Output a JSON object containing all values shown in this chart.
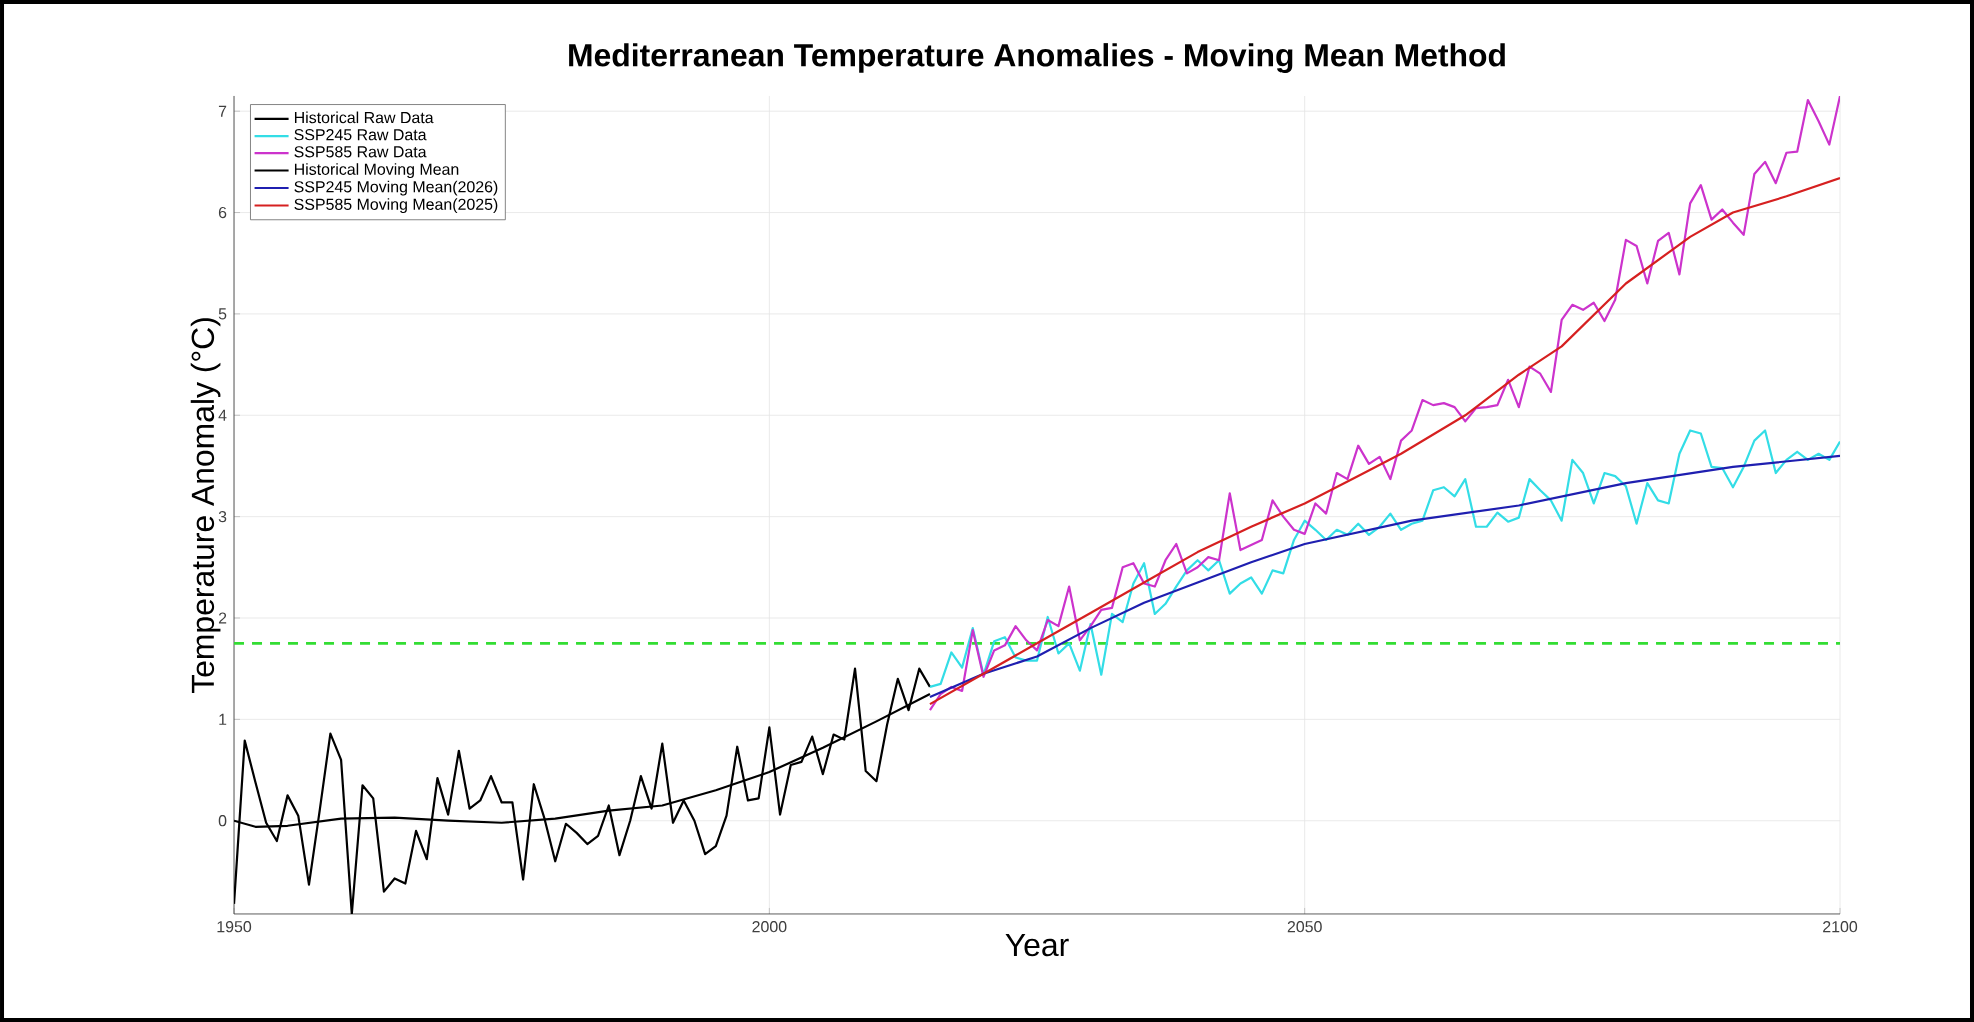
{
  "chart_data": {
    "type": "line",
    "title": "Mediterranean Temperature Anomalies - Moving Mean Method",
    "xlabel": "Year",
    "ylabel": "Temperature Anomaly (°C)",
    "xlim": [
      1950,
      2100
    ],
    "xticks": [
      1950,
      2000,
      2050,
      2100
    ],
    "ylim": [
      -0.92,
      7.15
    ],
    "yticks": [
      0,
      1,
      2,
      3,
      4,
      5,
      6,
      7
    ],
    "grid": true,
    "legend": "top left",
    "ref_lines": [
      {
        "axis": "y",
        "value": 1.75,
        "color": "#33dd33",
        "line_style": "dashed"
      }
    ],
    "series": [
      {
        "name": "Historical Raw Data",
        "color": "#000000",
        "x": [
          1950,
          1951,
          1952,
          1953,
          1954,
          1955,
          1956,
          1957,
          1958,
          1959,
          1960,
          1961,
          1962,
          1963,
          1964,
          1965,
          1966,
          1967,
          1968,
          1969,
          1970,
          1971,
          1972,
          1973,
          1974,
          1975,
          1976,
          1977,
          1978,
          1979,
          1980,
          1981,
          1982,
          1983,
          1984,
          1985,
          1986,
          1987,
          1988,
          1989,
          1990,
          1991,
          1992,
          1993,
          1994,
          1995,
          1996,
          1997,
          1998,
          1999,
          2000,
          2001,
          2002,
          2003,
          2004,
          2005,
          2006,
          2007,
          2008,
          2009,
          2010,
          2011,
          2012,
          2013,
          2014,
          2015
        ],
        "values": [
          -0.82,
          0.79,
          0.38,
          -0.02,
          -0.2,
          0.25,
          0.05,
          -0.63,
          0.1,
          0.86,
          0.6,
          -0.92,
          0.35,
          0.22,
          -0.7,
          -0.57,
          -0.62,
          -0.1,
          -0.38,
          0.42,
          0.06,
          0.69,
          0.12,
          0.2,
          0.44,
          0.18,
          0.18,
          -0.58,
          0.36,
          0.02,
          -0.4,
          -0.03,
          -0.12,
          -0.23,
          -0.15,
          0.15,
          -0.34,
          0.0,
          0.44,
          0.12,
          0.76,
          -0.02,
          0.2,
          0.0,
          -0.33,
          -0.25,
          0.05,
          0.73,
          0.2,
          0.22,
          0.92,
          0.06,
          0.55,
          0.58,
          0.83,
          0.46,
          0.85,
          0.8,
          1.5,
          0.49,
          0.39,
          0.95,
          1.4,
          1.09,
          1.5,
          1.32
        ]
      },
      {
        "name": "SSP245 Raw Data",
        "color": "#33dde6",
        "x": [
          2015,
          2016,
          2017,
          2018,
          2019,
          2020,
          2021,
          2022,
          2023,
          2024,
          2025,
          2026,
          2027,
          2028,
          2029,
          2030,
          2031,
          2032,
          2033,
          2034,
          2035,
          2036,
          2037,
          2038,
          2039,
          2040,
          2041,
          2042,
          2043,
          2044,
          2045,
          2046,
          2047,
          2048,
          2049,
          2050,
          2051,
          2052,
          2053,
          2054,
          2055,
          2056,
          2057,
          2058,
          2059,
          2060,
          2061,
          2062,
          2063,
          2064,
          2065,
          2066,
          2067,
          2068,
          2069,
          2070,
          2071,
          2072,
          2073,
          2074,
          2075,
          2076,
          2077,
          2078,
          2079,
          2080,
          2081,
          2082,
          2083,
          2084,
          2085,
          2086,
          2087,
          2088,
          2089,
          2090,
          2091,
          2092,
          2093,
          2094,
          2095,
          2096,
          2097,
          2098,
          2099,
          2100
        ],
        "values": [
          1.32,
          1.35,
          1.66,
          1.51,
          1.9,
          1.44,
          1.77,
          1.81,
          1.61,
          1.58,
          1.58,
          2.01,
          1.65,
          1.75,
          1.48,
          1.94,
          1.44,
          2.04,
          1.96,
          2.34,
          2.54,
          2.04,
          2.14,
          2.31,
          2.47,
          2.57,
          2.47,
          2.57,
          2.24,
          2.34,
          2.4,
          2.24,
          2.47,
          2.44,
          2.77,
          2.96,
          2.87,
          2.77,
          2.87,
          2.82,
          2.93,
          2.82,
          2.9,
          3.03,
          2.87,
          2.93,
          2.96,
          3.26,
          3.29,
          3.2,
          3.37,
          2.9,
          2.9,
          3.04,
          2.95,
          2.99,
          3.37,
          3.26,
          3.16,
          2.96,
          3.56,
          3.43,
          3.13,
          3.43,
          3.4,
          3.3,
          2.93,
          3.33,
          3.16,
          3.13,
          3.62,
          3.85,
          3.82,
          3.49,
          3.48,
          3.29,
          3.49,
          3.75,
          3.85,
          3.43,
          3.56,
          3.64,
          3.56,
          3.62,
          3.56,
          3.74
        ]
      },
      {
        "name": "SSP585 Raw Data",
        "color": "#cc33cc",
        "x": [
          2015,
          2016,
          2017,
          2018,
          2019,
          2020,
          2021,
          2022,
          2023,
          2024,
          2025,
          2026,
          2027,
          2028,
          2029,
          2030,
          2031,
          2032,
          2033,
          2034,
          2035,
          2036,
          2037,
          2038,
          2039,
          2040,
          2041,
          2042,
          2043,
          2044,
          2045,
          2046,
          2047,
          2048,
          2049,
          2050,
          2051,
          2052,
          2053,
          2054,
          2055,
          2056,
          2057,
          2058,
          2059,
          2060,
          2061,
          2062,
          2063,
          2064,
          2065,
          2066,
          2067,
          2068,
          2069,
          2070,
          2071,
          2072,
          2073,
          2074,
          2075,
          2076,
          2077,
          2078,
          2079,
          2080,
          2081,
          2082,
          2083,
          2084,
          2085,
          2086,
          2087,
          2088,
          2089,
          2090,
          2091,
          2092,
          2093,
          2094,
          2095,
          2096,
          2097,
          2098,
          2099,
          2100
        ],
        "values": [
          1.09,
          1.25,
          1.32,
          1.28,
          1.88,
          1.42,
          1.68,
          1.73,
          1.92,
          1.78,
          1.68,
          1.98,
          1.92,
          2.31,
          1.78,
          1.92,
          2.08,
          2.1,
          2.5,
          2.54,
          2.34,
          2.31,
          2.57,
          2.73,
          2.44,
          2.5,
          2.6,
          2.57,
          3.23,
          2.67,
          2.72,
          2.77,
          3.16,
          3.0,
          2.87,
          2.83,
          3.13,
          3.03,
          3.43,
          3.37,
          3.7,
          3.52,
          3.59,
          3.37,
          3.75,
          3.85,
          4.15,
          4.1,
          4.12,
          4.08,
          3.94,
          4.07,
          4.08,
          4.1,
          4.35,
          4.08,
          4.48,
          4.41,
          4.23,
          4.94,
          5.09,
          5.04,
          5.11,
          4.93,
          5.14,
          5.73,
          5.67,
          5.3,
          5.72,
          5.8,
          5.39,
          6.09,
          6.27,
          5.93,
          6.03,
          5.9,
          5.78,
          6.38,
          6.5,
          6.29,
          6.59,
          6.6,
          7.11,
          6.9,
          6.67,
          7.15
        ]
      },
      {
        "name": "Historical Moving Mean",
        "color": "#000000",
        "x": [
          1950,
          1952,
          1955,
          1960,
          1965,
          1970,
          1975,
          1980,
          1985,
          1990,
          1995,
          2000,
          2005,
          2010,
          2015
        ],
        "values": [
          0.0,
          -0.06,
          -0.05,
          0.02,
          0.03,
          0.0,
          -0.02,
          0.02,
          0.1,
          0.15,
          0.3,
          0.48,
          0.72,
          0.98,
          1.25
        ]
      },
      {
        "name": "SSP245  Moving Mean(2026)",
        "color": "#1f1fb0",
        "x": [
          2015,
          2020,
          2025,
          2030,
          2035,
          2040,
          2045,
          2050,
          2060,
          2070,
          2080,
          2090,
          2100
        ],
        "values": [
          1.22,
          1.45,
          1.62,
          1.9,
          2.15,
          2.35,
          2.55,
          2.73,
          2.96,
          3.11,
          3.33,
          3.49,
          3.6
        ]
      },
      {
        "name": "SSP585  Moving Mean(2025)",
        "color": "#d62020",
        "x": [
          2015,
          2020,
          2025,
          2030,
          2035,
          2040,
          2045,
          2050,
          2055,
          2059,
          2065,
          2070,
          2074,
          2080,
          2086,
          2090,
          2095,
          2100
        ],
        "values": [
          1.15,
          1.45,
          1.75,
          2.05,
          2.35,
          2.65,
          2.9,
          3.13,
          3.4,
          3.62,
          4.0,
          4.4,
          4.68,
          5.3,
          5.76,
          6.0,
          6.16,
          6.34
        ]
      }
    ]
  }
}
